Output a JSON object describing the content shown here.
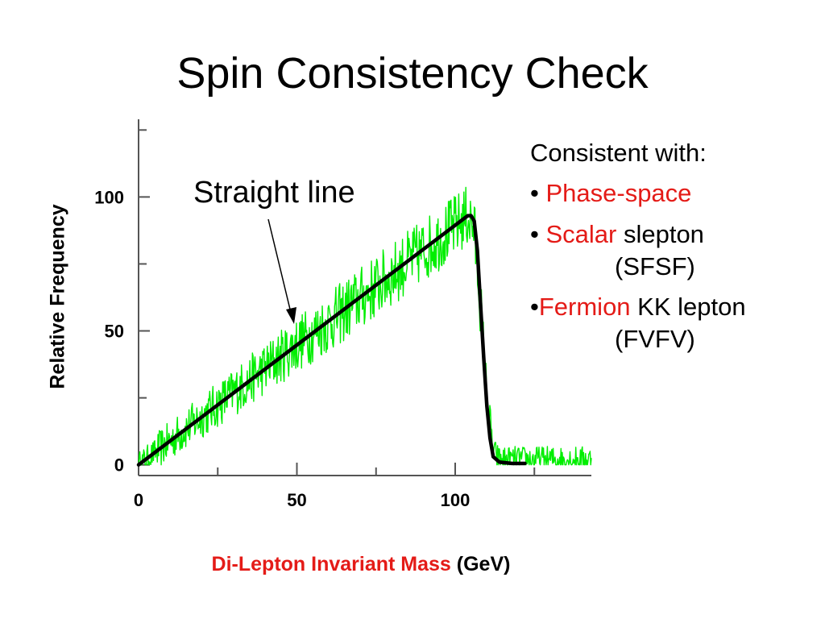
{
  "title": "Spin Consistency Check",
  "annotation": "Straight line",
  "notes": {
    "heading": "Consistent with:",
    "items": [
      {
        "bullet": "• ",
        "highlight": "Phase-space",
        "rest": "",
        "sub": ""
      },
      {
        "bullet": "• ",
        "highlight": "Scalar",
        "rest": " slepton",
        "sub": "(SFSF)"
      },
      {
        "bullet": "•",
        "highlight": "Fermion",
        "rest": " KK lepton",
        "sub": "(FVFV)"
      }
    ]
  },
  "colors": {
    "highlight": "#e41b17",
    "histogram": "#00ee00",
    "fit": "#000000"
  },
  "chart_data": {
    "type": "line",
    "xlabel_highlight": "Di-Lepton Invariant Mass",
    "xlabel_unit": " (GeV)",
    "ylabel": "Relative Frequency",
    "xlim": [
      0,
      143
    ],
    "ylim": [
      -4,
      129
    ],
    "x_ticks": [
      0,
      50,
      100
    ],
    "x_minor_ticks": [
      25,
      75,
      125
    ],
    "y_ticks": [
      0,
      50,
      100
    ],
    "y_minor_ticks": [
      25,
      75,
      125
    ],
    "series": [
      {
        "kind": "noisy-histogram",
        "x": [
          0,
          10,
          20,
          30,
          40,
          50,
          60,
          70,
          80,
          90,
          100,
          104,
          106,
          108,
          110,
          112,
          114,
          120,
          130,
          143
        ],
        "y": [
          0,
          9,
          18,
          27,
          36,
          45,
          53,
          62,
          71,
          80,
          89,
          93,
          88,
          60,
          25,
          5,
          2,
          2,
          2,
          2
        ],
        "noise_amplitude": 12
      },
      {
        "kind": "fit",
        "x": [
          0,
          104,
          105,
          106,
          107,
          108,
          109,
          110,
          111,
          112,
          114,
          118,
          122
        ],
        "y": [
          0,
          93,
          93,
          91,
          80,
          60,
          40,
          22,
          10,
          3,
          1,
          0.5,
          0.5
        ]
      }
    ]
  }
}
